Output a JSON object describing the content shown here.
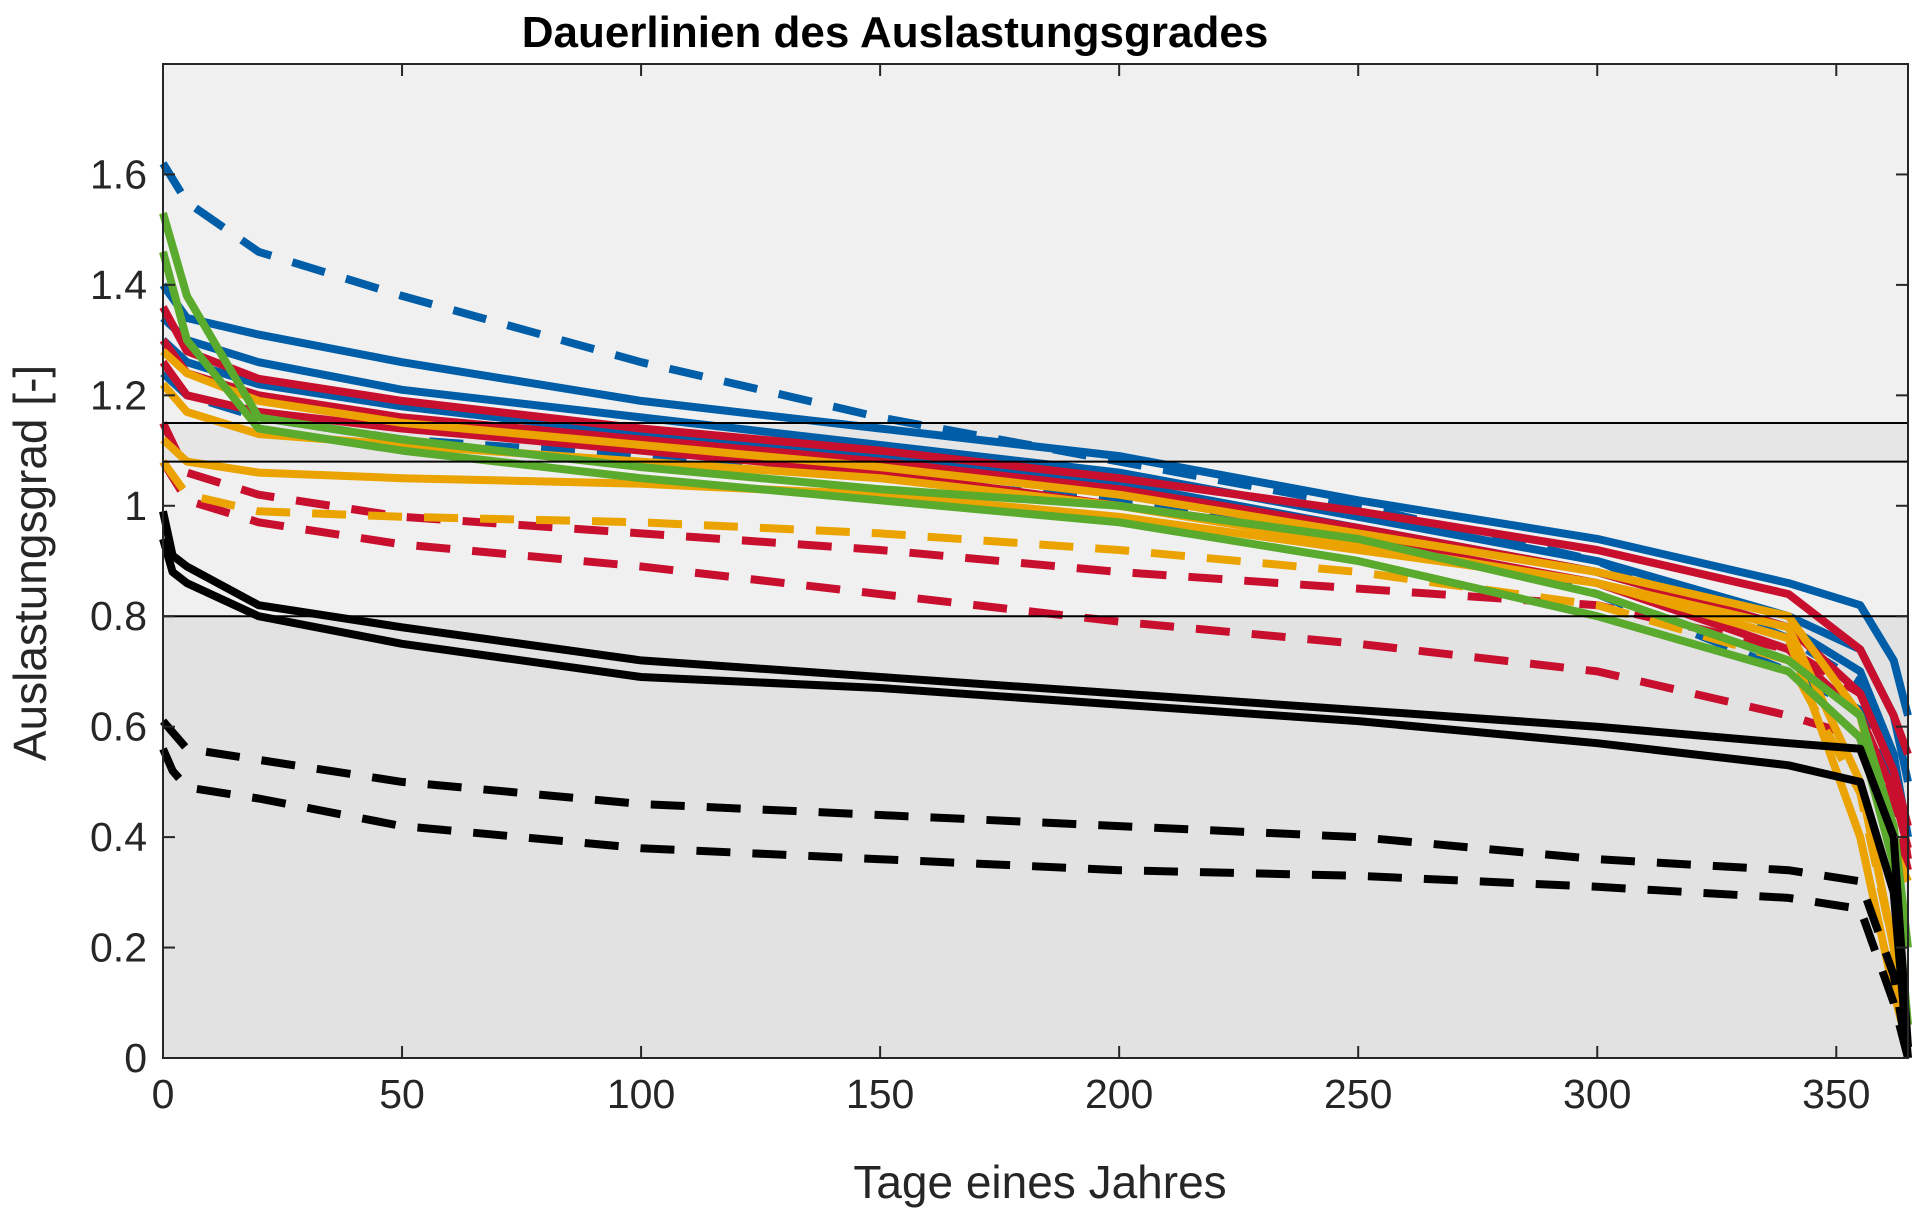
{
  "chart_data": {
    "type": "line",
    "title": "Dauerlinien des Auslastungsgrades",
    "xlabel": "Tage eines Jahres",
    "ylabel": "Auslastungsgrad [-]",
    "xlim": [
      0,
      365
    ],
    "ylim": [
      0,
      1.8
    ],
    "xticks": [
      0,
      50,
      100,
      150,
      200,
      250,
      300,
      350
    ],
    "yticks": [
      0,
      0.2,
      0.4,
      0.6,
      0.8,
      1,
      1.2,
      1.4,
      1.6
    ],
    "xtick_labels": [
      "0",
      "50",
      "100",
      "150",
      "200",
      "250",
      "300",
      "350"
    ],
    "ytick_labels": [
      "0",
      "0.2",
      "0.4",
      "0.6",
      "0.8",
      "1",
      "1.2",
      "1.4",
      "1.6"
    ],
    "grid": false,
    "legend": "none",
    "colors": {
      "blue": "#005ea8",
      "red": "#c8102e",
      "orange": "#eaa300",
      "green": "#5aaa2d",
      "black": "#000000",
      "band_light": "#f0f0f0",
      "band_mid": "#e6e6e6",
      "band_dark": "#e2e2e2"
    },
    "background_bands": [
      {
        "from": 1.15,
        "to": 1.8,
        "color": "#f0f0f0"
      },
      {
        "from": 1.08,
        "to": 1.15,
        "color": "#e6e6e6"
      },
      {
        "from": 0.8,
        "to": 1.08,
        "color": "#f0f0f0"
      },
      {
        "from": 0,
        "to": 0.8,
        "color": "#e2e2e2"
      }
    ],
    "threshold_lines": [
      1.15,
      1.08,
      0.8
    ],
    "series": [
      {
        "color": "#005ea8",
        "dash": true,
        "x": [
          0,
          5,
          20,
          50,
          100,
          150,
          200,
          250,
          300,
          340,
          355,
          362,
          365
        ],
        "y": [
          1.62,
          1.55,
          1.46,
          1.38,
          1.26,
          1.16,
          1.08,
          1.0,
          0.9,
          0.76,
          0.68,
          0.55,
          0.4
        ]
      },
      {
        "color": "#005ea8",
        "dash": true,
        "x": [
          0,
          5,
          20,
          50,
          100,
          150,
          200,
          250,
          300,
          340,
          355,
          362,
          365
        ],
        "y": [
          1.24,
          1.2,
          1.16,
          1.12,
          1.09,
          1.05,
          1.01,
          0.96,
          0.84,
          0.7,
          0.63,
          0.5,
          0.38
        ]
      },
      {
        "color": "#005ea8",
        "dash": false,
        "x": [
          0,
          5,
          20,
          50,
          100,
          150,
          200,
          250,
          300,
          340,
          355,
          362,
          365
        ],
        "y": [
          1.4,
          1.34,
          1.31,
          1.26,
          1.19,
          1.14,
          1.09,
          1.01,
          0.94,
          0.86,
          0.82,
          0.72,
          0.62
        ]
      },
      {
        "color": "#005ea8",
        "dash": false,
        "x": [
          0,
          5,
          20,
          50,
          100,
          150,
          200,
          250,
          300,
          340,
          355,
          362,
          365
        ],
        "y": [
          1.34,
          1.3,
          1.26,
          1.21,
          1.16,
          1.11,
          1.06,
          0.98,
          0.9,
          0.8,
          0.74,
          0.62,
          0.5
        ]
      },
      {
        "color": "#005ea8",
        "dash": false,
        "x": [
          0,
          5,
          20,
          50,
          100,
          150,
          200,
          250,
          300,
          340,
          355,
          362,
          365
        ],
        "y": [
          1.3,
          1.26,
          1.22,
          1.18,
          1.13,
          1.09,
          1.04,
          0.96,
          0.88,
          0.78,
          0.7,
          0.55,
          0.4
        ]
      },
      {
        "color": "#c8102e",
        "dash": true,
        "x": [
          0,
          5,
          20,
          50,
          100,
          150,
          200,
          250,
          300,
          340,
          355,
          362,
          365
        ],
        "y": [
          1.15,
          1.06,
          1.02,
          0.98,
          0.95,
          0.92,
          0.88,
          0.85,
          0.82,
          0.74,
          0.66,
          0.52,
          0.36
        ]
      },
      {
        "color": "#c8102e",
        "dash": true,
        "x": [
          0,
          5,
          20,
          50,
          100,
          150,
          200,
          250,
          300,
          340,
          355,
          362,
          365
        ],
        "y": [
          1.08,
          1.01,
          0.97,
          0.93,
          0.89,
          0.84,
          0.79,
          0.75,
          0.7,
          0.62,
          0.58,
          0.45,
          0.34
        ]
      },
      {
        "color": "#c8102e",
        "dash": false,
        "x": [
          0,
          5,
          20,
          50,
          100,
          150,
          200,
          250,
          300,
          340,
          355,
          362,
          365
        ],
        "y": [
          1.36,
          1.28,
          1.23,
          1.19,
          1.14,
          1.1,
          1.05,
          0.99,
          0.92,
          0.84,
          0.74,
          0.62,
          0.55
        ]
      },
      {
        "color": "#c8102e",
        "dash": false,
        "x": [
          0,
          5,
          20,
          50,
          100,
          150,
          200,
          250,
          300,
          340,
          355,
          362,
          365
        ],
        "y": [
          1.3,
          1.24,
          1.2,
          1.16,
          1.12,
          1.08,
          1.03,
          0.96,
          0.88,
          0.78,
          0.66,
          0.52,
          0.42
        ]
      },
      {
        "color": "#c8102e",
        "dash": false,
        "x": [
          0,
          5,
          20,
          50,
          100,
          150,
          200,
          250,
          300,
          340,
          355,
          362,
          365
        ],
        "y": [
          1.26,
          1.2,
          1.17,
          1.14,
          1.1,
          1.06,
          1.0,
          0.94,
          0.86,
          0.74,
          0.62,
          0.48,
          0.38
        ]
      },
      {
        "color": "#eaa300",
        "dash": true,
        "x": [
          0,
          5,
          20,
          50,
          100,
          150,
          200,
          250,
          300,
          340,
          355,
          362,
          365
        ],
        "y": [
          1.08,
          1.02,
          0.99,
          0.98,
          0.97,
          0.95,
          0.92,
          0.88,
          0.82,
          0.72,
          0.48,
          0.2,
          0.02
        ]
      },
      {
        "color": "#eaa300",
        "dash": false,
        "x": [
          0,
          5,
          20,
          50,
          100,
          150,
          200,
          250,
          300,
          340,
          355,
          362,
          365
        ],
        "y": [
          1.28,
          1.24,
          1.19,
          1.15,
          1.11,
          1.07,
          1.02,
          0.95,
          0.88,
          0.8,
          0.62,
          0.38,
          0.32
        ]
      },
      {
        "color": "#eaa300",
        "dash": false,
        "x": [
          0,
          5,
          20,
          50,
          100,
          150,
          200,
          250,
          300,
          340,
          355,
          362,
          365
        ],
        "y": [
          1.22,
          1.17,
          1.13,
          1.11,
          1.08,
          1.05,
          1.0,
          0.93,
          0.86,
          0.78,
          0.5,
          0.2,
          0.02
        ]
      },
      {
        "color": "#eaa300",
        "dash": false,
        "x": [
          0,
          5,
          20,
          50,
          100,
          150,
          200,
          250,
          300,
          340,
          355,
          362,
          365
        ],
        "y": [
          1.12,
          1.08,
          1.06,
          1.05,
          1.04,
          1.02,
          0.98,
          0.92,
          0.86,
          0.76,
          0.4,
          0.12,
          0.02
        ]
      },
      {
        "color": "#5aaa2d",
        "dash": false,
        "x": [
          0,
          5,
          20,
          50,
          100,
          150,
          200,
          250,
          300,
          340,
          355,
          362,
          365
        ],
        "y": [
          1.53,
          1.38,
          1.16,
          1.12,
          1.07,
          1.03,
          1.0,
          0.94,
          0.84,
          0.72,
          0.62,
          0.42,
          0.2
        ]
      },
      {
        "color": "#5aaa2d",
        "dash": false,
        "x": [
          0,
          5,
          20,
          50,
          100,
          150,
          200,
          250,
          300,
          340,
          355,
          362,
          365
        ],
        "y": [
          1.46,
          1.3,
          1.14,
          1.1,
          1.05,
          1.01,
          0.97,
          0.9,
          0.8,
          0.7,
          0.58,
          0.35,
          0.06
        ]
      },
      {
        "color": "#000000",
        "dash": false,
        "x": [
          0,
          2,
          5,
          20,
          50,
          100,
          150,
          200,
          250,
          300,
          340,
          355,
          362,
          365
        ],
        "y": [
          0.99,
          0.91,
          0.89,
          0.82,
          0.78,
          0.72,
          0.69,
          0.66,
          0.63,
          0.6,
          0.57,
          0.56,
          0.4,
          0.02
        ]
      },
      {
        "color": "#000000",
        "dash": false,
        "x": [
          0,
          2,
          5,
          20,
          50,
          100,
          150,
          200,
          250,
          300,
          340,
          355,
          362,
          365
        ],
        "y": [
          0.94,
          0.88,
          0.86,
          0.8,
          0.75,
          0.69,
          0.67,
          0.64,
          0.61,
          0.57,
          0.53,
          0.5,
          0.3,
          0.0
        ]
      },
      {
        "color": "#000000",
        "dash": true,
        "x": [
          0,
          2,
          5,
          20,
          50,
          100,
          150,
          200,
          250,
          300,
          340,
          355,
          362,
          365
        ],
        "y": [
          0.61,
          0.59,
          0.56,
          0.54,
          0.5,
          0.46,
          0.44,
          0.42,
          0.4,
          0.36,
          0.34,
          0.32,
          0.15,
          0.0
        ]
      },
      {
        "color": "#000000",
        "dash": true,
        "x": [
          0,
          2,
          5,
          20,
          50,
          100,
          150,
          200,
          250,
          300,
          340,
          355,
          362,
          365
        ],
        "y": [
          0.56,
          0.52,
          0.49,
          0.47,
          0.42,
          0.38,
          0.36,
          0.34,
          0.33,
          0.31,
          0.29,
          0.27,
          0.1,
          0.0
        ]
      }
    ]
  }
}
